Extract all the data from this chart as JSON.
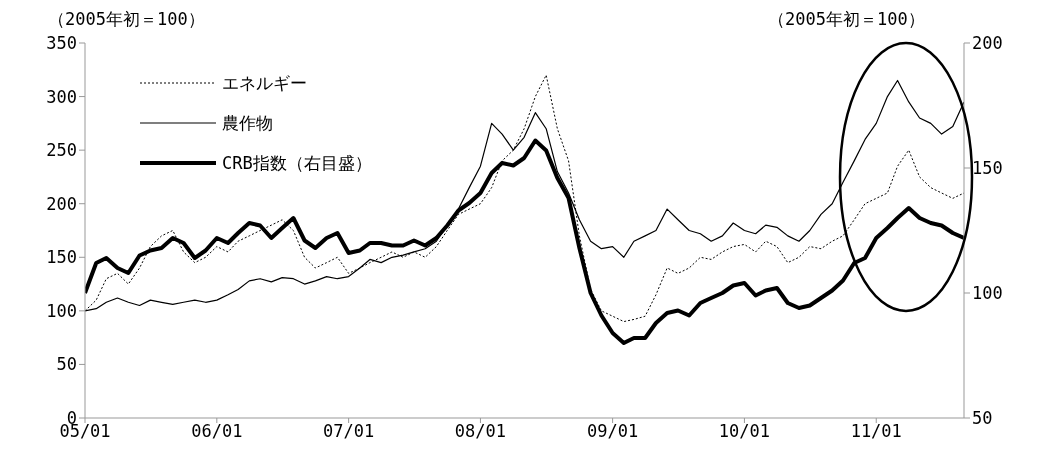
{
  "chart_data": {
    "type": "line",
    "ylabel": "（2005年初＝100）",
    "y2label": "（2005年初＝100）",
    "x": [
      "2005-01",
      "2005-02",
      "2005-03",
      "2005-04",
      "2005-05",
      "2005-06",
      "2005-07",
      "2005-08",
      "2005-09",
      "2005-10",
      "2005-11",
      "2005-12",
      "2006-01",
      "2006-02",
      "2006-03",
      "2006-04",
      "2006-05",
      "2006-06",
      "2006-07",
      "2006-08",
      "2006-09",
      "2006-10",
      "2006-11",
      "2006-12",
      "2007-01",
      "2007-02",
      "2007-03",
      "2007-04",
      "2007-05",
      "2007-06",
      "2007-07",
      "2007-08",
      "2007-09",
      "2007-10",
      "2007-11",
      "2007-12",
      "2008-01",
      "2008-02",
      "2008-03",
      "2008-04",
      "2008-05",
      "2008-06",
      "2008-07",
      "2008-08",
      "2008-09",
      "2008-10",
      "2008-11",
      "2008-12",
      "2009-01",
      "2009-02",
      "2009-03",
      "2009-04",
      "2009-05",
      "2009-06",
      "2009-07",
      "2009-08",
      "2009-09",
      "2009-10",
      "2009-11",
      "2009-12",
      "2010-01",
      "2010-02",
      "2010-03",
      "2010-04",
      "2010-05",
      "2010-06",
      "2010-07",
      "2010-08",
      "2010-09",
      "2010-10",
      "2010-11",
      "2010-12",
      "2011-01",
      "2011-02",
      "2011-03",
      "2011-04",
      "2011-05",
      "2011-06",
      "2011-07",
      "2011-08",
      "2011-09"
    ],
    "series": [
      {
        "name": "エネルギー",
        "color": "#000000",
        "line_style": "dotted",
        "values": [
          100,
          110,
          130,
          135,
          125,
          140,
          160,
          170,
          175,
          155,
          145,
          150,
          160,
          155,
          165,
          170,
          175,
          180,
          185,
          175,
          150,
          140,
          145,
          150,
          135,
          140,
          145,
          150,
          155,
          150,
          155,
          150,
          160,
          175,
          190,
          195,
          200,
          215,
          240,
          250,
          270,
          300,
          320,
          270,
          240,
          170,
          120,
          100,
          95,
          90,
          92,
          95,
          115,
          140,
          135,
          140,
          150,
          148,
          155,
          160,
          162,
          155,
          165,
          160,
          145,
          150,
          160,
          158,
          165,
          170,
          185,
          200,
          205,
          210,
          235,
          250,
          225,
          215,
          210,
          205,
          210
        ]
      },
      {
        "name": "農作物",
        "color": "#000000",
        "line_style": "solid",
        "values": [
          100,
          102,
          108,
          112,
          108,
          105,
          110,
          108,
          106,
          108,
          110,
          108,
          110,
          115,
          120,
          128,
          130,
          127,
          131,
          130,
          125,
          128,
          132,
          130,
          132,
          140,
          148,
          145,
          150,
          152,
          155,
          158,
          165,
          180,
          195,
          215,
          235,
          275,
          265,
          250,
          262,
          285,
          270,
          230,
          210,
          185,
          165,
          158,
          160,
          150,
          165,
          170,
          175,
          195,
          185,
          175,
          172,
          165,
          170,
          182,
          175,
          172,
          180,
          178,
          170,
          165,
          175,
          190,
          200,
          220,
          240,
          260,
          275,
          300,
          315,
          295,
          280,
          275,
          265,
          272,
          295
        ]
      },
      {
        "name": "CRB指数（右目盛）",
        "color": "#000000",
        "line_style": "solid",
        "axis": "y2",
        "values": [
          100,
          112,
          114,
          110,
          108,
          115,
          117,
          118,
          122,
          120,
          114,
          117,
          122,
          120,
          124,
          128,
          127,
          122,
          126,
          130,
          121,
          118,
          122,
          124,
          116,
          117,
          120,
          120,
          119,
          119,
          121,
          119,
          122,
          127,
          133,
          136,
          140,
          148,
          152,
          151,
          154,
          161,
          157,
          146,
          138,
          118,
          100,
          91,
          84,
          80,
          82,
          82,
          88,
          92,
          93,
          91,
          96,
          98,
          100,
          103,
          104,
          99,
          101,
          102,
          96,
          94,
          95,
          98,
          101,
          105,
          112,
          114,
          122,
          126,
          130,
          134,
          130,
          128,
          127,
          124,
          122
        ]
      }
    ],
    "xlim": [
      "2005-01",
      "2011-09"
    ],
    "xticks": [
      {
        "value": "2005-01",
        "label": "05/01"
      },
      {
        "value": "2006-01",
        "label": "06/01"
      },
      {
        "value": "2007-01",
        "label": "07/01"
      },
      {
        "value": "2008-01",
        "label": "08/01"
      },
      {
        "value": "2009-01",
        "label": "09/01"
      },
      {
        "value": "2010-01",
        "label": "10/01"
      },
      {
        "value": "2011-01",
        "label": "11/01"
      }
    ],
    "ylim": [
      0,
      350
    ],
    "yticks": [
      0,
      50,
      100,
      150,
      200,
      250,
      300,
      350
    ],
    "y2lim": [
      50,
      200
    ],
    "y2ticks": [
      50,
      100,
      150,
      200
    ],
    "grid": false,
    "legend": "top left",
    "marker": "none"
  }
}
